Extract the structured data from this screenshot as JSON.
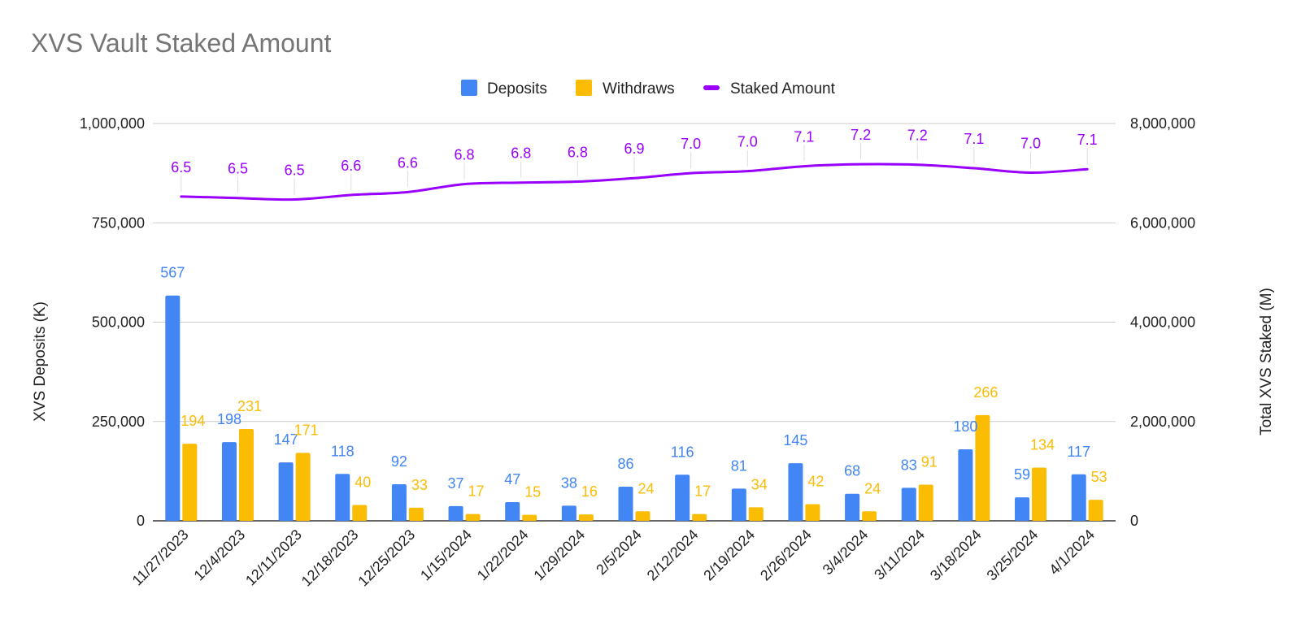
{
  "chart_data": {
    "type": "bar",
    "title": "XVS Vault Staked Amount",
    "categories": [
      "11/27/2023",
      "12/4/2023",
      "12/11/2023",
      "12/18/2023",
      "12/25/2023",
      "1/15/2024",
      "1/22/2024",
      "1/29/2024",
      "2/5/2024",
      "2/12/2024",
      "2/19/2024",
      "2/26/2024",
      "3/4/2024",
      "3/11/2024",
      "3/18/2024",
      "3/25/2024",
      "4/1/2024"
    ],
    "series": [
      {
        "name": "Deposits",
        "type": "bar",
        "axis": "left",
        "color": "#4285F4",
        "values": [
          567000,
          198000,
          147000,
          118000,
          92000,
          37000,
          47000,
          38000,
          86000,
          116000,
          81000,
          145000,
          68000,
          83000,
          180000,
          59000,
          117000
        ],
        "labels": [
          "567",
          "198",
          "147",
          "118",
          "92",
          "37",
          "47",
          "38",
          "86",
          "116",
          "81",
          "145",
          "68",
          "83",
          "180",
          "59",
          "117"
        ]
      },
      {
        "name": "Withdraws",
        "type": "bar",
        "axis": "left",
        "color": "#FBBC04",
        "values": [
          194000,
          231000,
          171000,
          40000,
          33000,
          17000,
          15000,
          16000,
          24000,
          17000,
          34000,
          42000,
          24000,
          91000,
          266000,
          134000,
          53000
        ],
        "labels": [
          "194",
          "231",
          "171",
          "40",
          "33",
          "17",
          "15",
          "16",
          "24",
          "17",
          "34",
          "42",
          "24",
          "91",
          "266",
          "134",
          "53"
        ]
      },
      {
        "name": "Staked Amount",
        "type": "line",
        "axis": "right",
        "color": "#9900FF",
        "values": [
          6530000,
          6500000,
          6470000,
          6560000,
          6620000,
          6780000,
          6810000,
          6830000,
          6900000,
          7000000,
          7040000,
          7140000,
          7180000,
          7170000,
          7100000,
          7010000,
          7080000
        ],
        "labels": [
          "6.5",
          "6.5",
          "6.5",
          "6.6",
          "6.6",
          "6.8",
          "6.8",
          "6.8",
          "6.9",
          "7.0",
          "7.0",
          "7.1",
          "7.2",
          "7.2",
          "7.1",
          "7.0",
          "7.1"
        ]
      }
    ],
    "y_left": {
      "label": "XVS Deposits (K)",
      "range": [
        0,
        1000000
      ],
      "ticks": [
        0,
        250000,
        500000,
        750000,
        1000000
      ],
      "tick_labels": [
        "0",
        "250,000",
        "500,000",
        "750,000",
        "1,000,000"
      ]
    },
    "y_right": {
      "label": "Total XVS Staked (M)",
      "range": [
        0,
        8000000
      ],
      "ticks": [
        0,
        2000000,
        4000000,
        6000000,
        8000000
      ],
      "tick_labels": [
        "0",
        "2,000,000",
        "4,000,000",
        "6,000,000",
        "8,000,000"
      ]
    },
    "grid": true,
    "legend": {
      "position": "top-center",
      "items": [
        "Deposits",
        "Withdraws",
        "Staked Amount"
      ]
    }
  }
}
